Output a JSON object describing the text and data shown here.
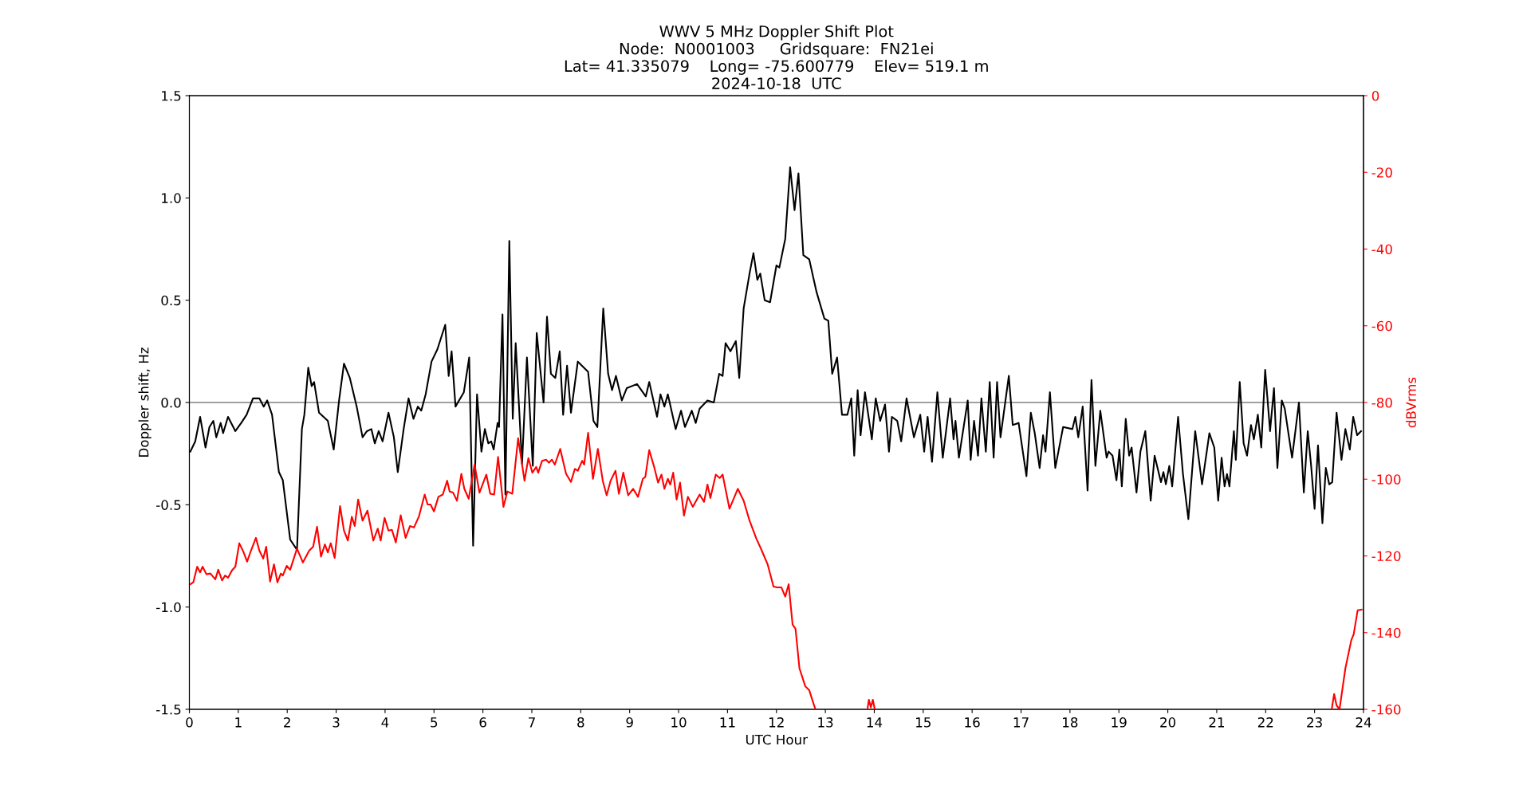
{
  "chart_data": {
    "type": "line",
    "title": "WWV 5 MHz Doppler Shift Plot\nNode:  N0001003     Gridsquare:  FN21ei\nLat= 41.335079    Long= -75.600779    Elev= 519.1 m\n2024-10-18  UTC",
    "xlabel": "UTC Hour",
    "ylabel": "Doppler shift, Hz",
    "y2label": "dBVrms",
    "xlim": [
      0,
      24
    ],
    "xticks": [
      0,
      1,
      2,
      3,
      4,
      5,
      6,
      7,
      8,
      9,
      10,
      11,
      12,
      13,
      14,
      15,
      16,
      17,
      18,
      19,
      20,
      21,
      22,
      23,
      24
    ],
    "ylim": [
      -1.5,
      1.5
    ],
    "yticks": [
      -1.5,
      {
        "value": -1,
        "label": "-1.0"
      },
      -0.5,
      {
        "value": 0,
        "label": "0.0"
      },
      0.5,
      {
        "value": 1,
        "label": "1.0"
      },
      1.5
    ],
    "y2lim": [
      -160,
      0
    ],
    "y2ticks": [
      -160,
      -140,
      -120,
      -100,
      -80,
      -60,
      -40,
      -20,
      0
    ],
    "grid": false,
    "line_style": "solid",
    "marker": "none",
    "ref_lines": [
      {
        "axis": "y",
        "value": 0,
        "label": null,
        "color": "#808080"
      }
    ],
    "series": [
      {
        "color": "#000000",
        "x": [
          0.02,
          0.12,
          0.22,
          0.33,
          0.41,
          0.49,
          0.55,
          0.64,
          0.69,
          0.79,
          0.94,
          1.06,
          1.17,
          1.3,
          1.43,
          1.52,
          1.59,
          1.69,
          1.83,
          1.91,
          2.06,
          2.2,
          2.3,
          2.35,
          2.43,
          2.5,
          2.55,
          2.65,
          2.83,
          2.95,
          3.06,
          3.16,
          3.28,
          3.42,
          3.54,
          3.63,
          3.72,
          3.79,
          3.87,
          3.95,
          4.07,
          4.18,
          4.26,
          4.38,
          4.48,
          4.58,
          4.67,
          4.74,
          4.83,
          4.95,
          5.07,
          5.23,
          5.3,
          5.36,
          5.44,
          5.61,
          5.72,
          5.8,
          5.88,
          5.97,
          6.04,
          6.11,
          6.17,
          6.22,
          6.3,
          6.33,
          6.4,
          6.46,
          6.54,
          6.61,
          6.67,
          6.8,
          6.9,
          7.02,
          7.1,
          7.24,
          7.31,
          7.39,
          7.48,
          7.57,
          7.64,
          7.72,
          7.8,
          7.94,
          8.15,
          8.26,
          8.34,
          8.46,
          8.56,
          8.64,
          8.72,
          8.84,
          8.94,
          9.15,
          9.33,
          9.4,
          9.56,
          9.63,
          9.71,
          9.78,
          9.94,
          10.05,
          10.13,
          10.27,
          10.35,
          10.43,
          10.59,
          10.72,
          10.83,
          10.9,
          10.96,
          11.06,
          11.17,
          11.24,
          11.33,
          11.45,
          11.53,
          11.61,
          11.67,
          11.76,
          11.87,
          12.0,
          12.06,
          12.18,
          12.28,
          12.37,
          12.45,
          12.55,
          12.67,
          12.82,
          12.98,
          13.06,
          13.14,
          13.24,
          13.34,
          13.45,
          13.53,
          13.59,
          13.66,
          13.72,
          13.81,
          13.95,
          14.03,
          14.12,
          14.22,
          14.3,
          14.36,
          14.47,
          14.55,
          14.66,
          14.81,
          14.94,
          15.02,
          15.09,
          15.18,
          15.29,
          15.4,
          15.55,
          15.62,
          15.66,
          15.73,
          15.91,
          15.97,
          16.04,
          16.12,
          16.19,
          16.28,
          16.36,
          16.44,
          16.51,
          16.58,
          16.75,
          16.83,
          16.95,
          17.11,
          17.2,
          17.28,
          17.38,
          17.45,
          17.5,
          17.59,
          17.7,
          17.86,
          18.05,
          18.11,
          18.17,
          18.26,
          18.36,
          18.44,
          18.52,
          18.62,
          18.75,
          18.79,
          18.87,
          18.95,
          19.01,
          19.06,
          19.14,
          19.21,
          19.26,
          19.36,
          19.44,
          19.54,
          19.65,
          19.73,
          19.86,
          19.91,
          19.96,
          20.03,
          20.09,
          20.21,
          20.31,
          20.42,
          20.56,
          20.7,
          20.85,
          20.95,
          21.03,
          21.1,
          21.16,
          21.21,
          21.26,
          21.35,
          21.39,
          21.47,
          21.55,
          21.62,
          21.7,
          21.76,
          21.84,
          21.91,
          21.99,
          22.09,
          22.17,
          22.24,
          22.33,
          22.39,
          22.54,
          22.68,
          22.78,
          22.86,
          22.93,
          23.0,
          23.07,
          23.16,
          23.23,
          23.3,
          23.36,
          23.45,
          23.55,
          23.63,
          23.72,
          23.79,
          23.87,
          23.95
        ],
        "values": [
          -0.24,
          -0.19,
          -0.07,
          -0.22,
          -0.12,
          -0.09,
          -0.17,
          -0.1,
          -0.15,
          -0.07,
          -0.14,
          -0.1,
          -0.06,
          0.02,
          0.02,
          -0.02,
          0.01,
          -0.06,
          -0.34,
          -0.38,
          -0.67,
          -0.72,
          -0.13,
          -0.06,
          0.17,
          0.08,
          0.1,
          -0.05,
          -0.09,
          -0.23,
          0.01,
          0.19,
          0.12,
          -0.02,
          -0.17,
          -0.14,
          -0.13,
          -0.2,
          -0.14,
          -0.19,
          -0.05,
          -0.17,
          -0.34,
          -0.13,
          0.02,
          -0.08,
          -0.02,
          -0.04,
          0.04,
          0.2,
          0.26,
          0.38,
          0.13,
          0.25,
          -0.02,
          0.05,
          0.22,
          -0.7,
          0.04,
          -0.24,
          -0.13,
          -0.2,
          -0.19,
          -0.23,
          -0.1,
          -0.12,
          0.43,
          -0.45,
          0.79,
          -0.08,
          0.29,
          -0.3,
          0.22,
          -0.31,
          0.34,
          0.0,
          0.42,
          0.14,
          0.12,
          0.25,
          -0.06,
          0.18,
          -0.05,
          0.2,
          0.15,
          -0.09,
          -0.12,
          0.46,
          0.14,
          0.06,
          0.13,
          0.01,
          0.07,
          0.09,
          0.03,
          0.1,
          -0.07,
          0.04,
          -0.02,
          0.04,
          -0.13,
          -0.04,
          -0.12,
          -0.04,
          -0.1,
          -0.03,
          0.01,
          0.0,
          0.14,
          0.13,
          0.29,
          0.25,
          0.3,
          0.12,
          0.46,
          0.63,
          0.73,
          0.6,
          0.63,
          0.5,
          0.49,
          0.67,
          0.66,
          0.8,
          1.15,
          0.94,
          1.12,
          0.72,
          0.7,
          0.54,
          0.41,
          0.4,
          0.14,
          0.22,
          -0.06,
          -0.06,
          0.02,
          -0.26,
          0.06,
          -0.16,
          0.05,
          -0.18,
          0.02,
          -0.09,
          -0.01,
          -0.24,
          -0.07,
          -0.09,
          -0.19,
          0.02,
          -0.17,
          -0.06,
          -0.24,
          -0.07,
          -0.29,
          0.05,
          -0.27,
          0.02,
          -0.18,
          -0.09,
          -0.27,
          0.01,
          -0.28,
          -0.09,
          -0.26,
          0.02,
          -0.24,
          0.1,
          -0.27,
          0.1,
          -0.17,
          0.13,
          -0.11,
          -0.1,
          -0.36,
          -0.05,
          -0.15,
          -0.32,
          -0.16,
          -0.24,
          0.05,
          -0.32,
          -0.12,
          -0.13,
          -0.07,
          -0.17,
          -0.02,
          -0.43,
          0.11,
          -0.31,
          -0.04,
          -0.27,
          -0.24,
          -0.26,
          -0.38,
          -0.23,
          -0.41,
          -0.08,
          -0.26,
          -0.22,
          -0.44,
          -0.24,
          -0.14,
          -0.48,
          -0.26,
          -0.39,
          -0.34,
          -0.4,
          -0.31,
          -0.41,
          -0.07,
          -0.35,
          -0.57,
          -0.14,
          -0.4,
          -0.15,
          -0.22,
          -0.48,
          -0.27,
          -0.41,
          -0.35,
          -0.41,
          -0.14,
          -0.28,
          0.1,
          -0.2,
          -0.26,
          -0.11,
          -0.18,
          -0.06,
          -0.22,
          0.16,
          -0.14,
          0.07,
          -0.32,
          0.01,
          -0.03,
          -0.27,
          0.0,
          -0.44,
          -0.14,
          -0.31,
          -0.52,
          -0.21,
          -0.59,
          -0.32,
          -0.4,
          -0.39,
          -0.05,
          -0.28,
          -0.13,
          -0.23,
          -0.07,
          -0.16,
          -0.14
        ]
      },
      {
        "color": "#ff0000",
        "axis": "y2",
        "x": [
          0.02,
          0.08,
          0.16,
          0.22,
          0.27,
          0.35,
          0.43,
          0.53,
          0.59,
          0.67,
          0.73,
          0.79,
          0.87,
          0.94,
          1.02,
          1.1,
          1.18,
          1.26,
          1.36,
          1.43,
          1.51,
          1.57,
          1.65,
          1.73,
          1.8,
          1.87,
          1.91,
          1.99,
          2.06,
          2.2,
          2.32,
          2.45,
          2.53,
          2.61,
          2.69,
          2.77,
          2.83,
          2.89,
          2.97,
          3.08,
          3.16,
          3.24,
          3.32,
          3.38,
          3.45,
          3.54,
          3.64,
          3.76,
          3.85,
          3.91,
          3.99,
          4.07,
          4.14,
          4.22,
          4.32,
          4.42,
          4.51,
          4.59,
          4.69,
          4.81,
          4.87,
          4.93,
          5.0,
          5.09,
          5.18,
          5.27,
          5.32,
          5.39,
          5.47,
          5.56,
          5.62,
          5.71,
          5.83,
          5.93,
          6.07,
          6.15,
          6.23,
          6.31,
          6.42,
          6.5,
          6.6,
          6.72,
          6.85,
          6.93,
          7.01,
          7.09,
          7.13,
          7.21,
          7.29,
          7.35,
          7.41,
          7.47,
          7.58,
          7.7,
          7.8,
          7.88,
          7.94,
          8.03,
          8.07,
          8.15,
          8.25,
          8.35,
          8.45,
          8.53,
          8.61,
          8.71,
          8.78,
          8.87,
          8.97,
          9.07,
          9.17,
          9.27,
          9.32,
          9.4,
          9.5,
          9.58,
          9.65,
          9.71,
          9.78,
          9.83,
          9.89,
          9.96,
          10.03,
          10.11,
          10.19,
          10.29,
          10.43,
          10.52,
          10.59,
          10.65,
          10.76,
          10.84,
          10.9,
          11.04,
          11.21,
          11.33,
          11.45,
          11.59,
          11.7,
          11.82,
          11.94,
          12.02,
          12.1,
          12.18,
          12.25,
          12.33,
          12.39,
          12.47,
          12.59,
          12.67,
          12.77,
          12.8,
          12.85,
          13.84,
          13.86,
          13.89,
          13.93,
          13.97,
          14.01,
          14.03,
          23.3,
          23.35,
          23.4,
          23.45,
          23.51,
          23.63,
          23.75,
          23.8,
          23.88,
          23.96
        ],
        "values": [
          -127.4,
          -126.9,
          -122.8,
          -124.3,
          -122.8,
          -124.8,
          -124.6,
          -126.1,
          -123.6,
          -126.4,
          -125.1,
          -125.7,
          -123.8,
          -122.8,
          -116.7,
          -118.8,
          -121.5,
          -118.6,
          -115.3,
          -118.6,
          -120.7,
          -117.6,
          -126.7,
          -122.2,
          -126.9,
          -124.6,
          -125.1,
          -122.6,
          -123.6,
          -118.1,
          -121.7,
          -118.6,
          -117.6,
          -112.4,
          -120.2,
          -117.0,
          -119.1,
          -116.7,
          -120.5,
          -107.0,
          -113.4,
          -116.0,
          -109.8,
          -112.2,
          -105.3,
          -110.8,
          -108.2,
          -116.0,
          -112.9,
          -116.0,
          -110.1,
          -113.4,
          -113.2,
          -116.5,
          -109.4,
          -115.3,
          -112.2,
          -112.6,
          -109.8,
          -104.0,
          -106.6,
          -106.6,
          -108.4,
          -104.6,
          -104.0,
          -100.4,
          -103.2,
          -103.5,
          -105.6,
          -98.6,
          -102.5,
          -105.1,
          -96.2,
          -103.5,
          -98.8,
          -103.8,
          -104.0,
          -94.2,
          -107.2,
          -103.2,
          -103.8,
          -89.3,
          -100.4,
          -94.5,
          -98.3,
          -96.8,
          -98.3,
          -95.2,
          -94.9,
          -95.7,
          -94.9,
          -96.2,
          -92.1,
          -98.6,
          -100.7,
          -97.3,
          -97.8,
          -95.2,
          -96.2,
          -87.9,
          -99.9,
          -92.1,
          -100.4,
          -104.2,
          -100.4,
          -97.8,
          -103.8,
          -98.3,
          -104.2,
          -102.5,
          -104.6,
          -99.9,
          -99.4,
          -92.4,
          -96.8,
          -100.9,
          -98.8,
          -102.5,
          -99.9,
          -101.4,
          -98.3,
          -105.3,
          -100.9,
          -109.5,
          -104.6,
          -107.2,
          -104.0,
          -105.9,
          -101.4,
          -104.9,
          -98.8,
          -99.7,
          -98.8,
          -107.7,
          -102.5,
          -105.6,
          -110.8,
          -115.5,
          -118.6,
          -122.2,
          -128.0,
          -128.2,
          -128.2,
          -130.6,
          -127.4,
          -137.9,
          -139.0,
          -149.3,
          -154.0,
          -155.0,
          -159.0,
          -160.0,
          null,
          null,
          -160.0,
          -157.5,
          -159.5,
          -157.5,
          -160.0,
          null,
          null,
          -160.0,
          -156.0,
          -159.0,
          -160.0,
          -149.3,
          -142.0,
          -140.4,
          -134.2,
          -134.0
        ]
      }
    ]
  }
}
